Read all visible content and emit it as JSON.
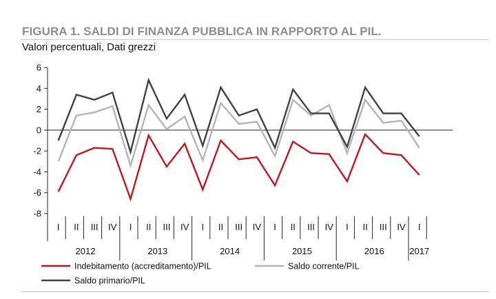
{
  "header": {
    "title": "FIGURA 1. SALDI DI FINANZA PUBBLICA IN RAPPORTO AL PIL.",
    "subtitle": "Valori percentuali, Dati grezzi"
  },
  "chart_data": {
    "type": "line",
    "title": "FIGURA 1. SALDI DI FINANZA PUBBLICA IN RAPPORTO AL PIL.",
    "subtitle": "Valori percentuali, Dati grezzi",
    "xlabel": "",
    "ylabel": "",
    "ylim": [
      -8,
      6
    ],
    "yticks": [
      6,
      4,
      2,
      0,
      -2,
      -4,
      -6,
      -8
    ],
    "grid": false,
    "legend_position": "bottom",
    "quarters": [
      "I",
      "II",
      "III",
      "IV",
      "I",
      "II",
      "III",
      "IV",
      "I",
      "II",
      "III",
      "IV",
      "I",
      "II",
      "III",
      "IV",
      "I",
      "II",
      "III",
      "IV",
      "I"
    ],
    "years": [
      "2012",
      "2013",
      "2014",
      "2015",
      "2016",
      "2017"
    ],
    "x": [
      "2012 I",
      "2012 II",
      "2012 III",
      "2012 IV",
      "2013 I",
      "2013 II",
      "2013 III",
      "2013 IV",
      "2014 I",
      "2014 II",
      "2014 III",
      "2014 IV",
      "2015 I",
      "2015 II",
      "2015 III",
      "2015 IV",
      "2016 I",
      "2016 II",
      "2016 III",
      "2016 IV",
      "2017 I"
    ],
    "series": [
      {
        "name": "Indebitamento (accreditamento)/PIL",
        "color": "#c0161b",
        "values": [
          -5.9,
          -2.4,
          -1.7,
          -1.8,
          -6.6,
          -0.5,
          -3.5,
          -1.3,
          -5.7,
          -1.0,
          -2.8,
          -2.6,
          -5.3,
          -1.1,
          -2.2,
          -2.3,
          -4.9,
          -0.4,
          -2.2,
          -2.4,
          -4.3
        ]
      },
      {
        "name": "Saldo corrente/PIL",
        "color": "#b3b3b3",
        "values": [
          -3.0,
          1.4,
          1.7,
          2.3,
          -3.4,
          2.4,
          0.1,
          1.3,
          -2.9,
          2.6,
          0.6,
          0.8,
          -2.5,
          2.9,
          1.4,
          2.4,
          -2.2,
          2.9,
          0.7,
          0.9,
          -1.7
        ]
      },
      {
        "name": "Saldo primario/PIL",
        "color": "#404040",
        "values": [
          -1.0,
          3.4,
          2.9,
          3.6,
          -2.1,
          4.8,
          1.1,
          3.4,
          -1.5,
          4.1,
          1.4,
          2.0,
          -1.7,
          3.9,
          1.6,
          1.6,
          -1.6,
          4.1,
          1.6,
          1.6,
          -0.6
        ]
      }
    ]
  },
  "legend": {
    "items": [
      {
        "label": "Indebitamento (accreditamento)/PIL",
        "color": "#c0161b"
      },
      {
        "label": "Saldo corrente/PIL",
        "color": "#b3b3b3"
      },
      {
        "label": "Saldo primario/PIL",
        "color": "#404040"
      }
    ]
  }
}
